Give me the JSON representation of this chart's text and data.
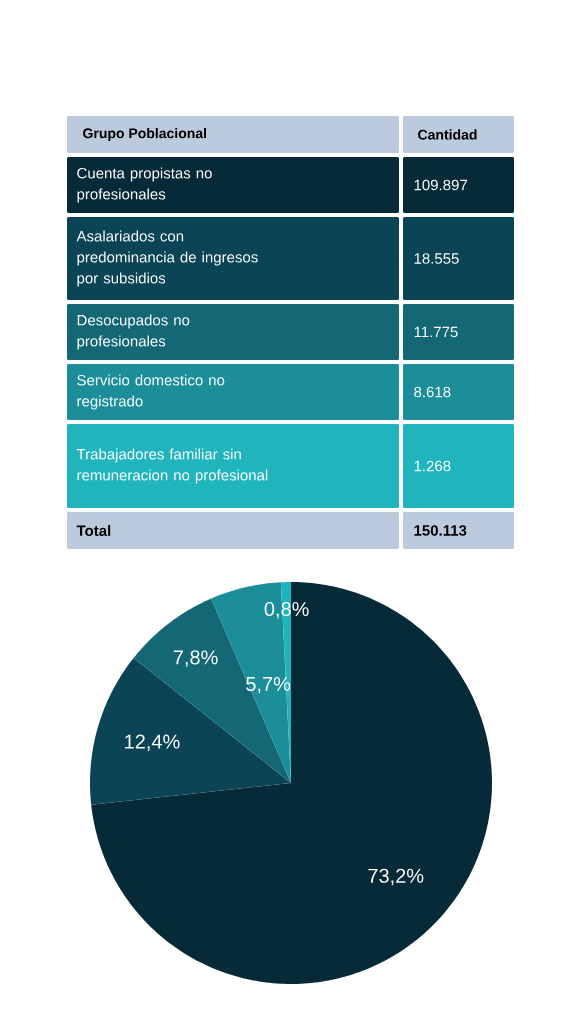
{
  "chart_data": [
    {
      "type": "other",
      "annotations": [
        "Grupo Poblacional",
        "Cantidad",
        "Cuenta propistas no profesionales",
        "109.897",
        "Asalariados con predominancia de ingresos por subsidios",
        "18.555",
        "Desocupados no profesionales",
        "11.775",
        "Servicio domestico no registrado",
        "8.618",
        "Trabajadores familiar sin remuneracion no profesional",
        "1.268",
        "Total",
        "150.113"
      ]
    },
    {
      "type": "pie",
      "categories": [
        null,
        null,
        null,
        null,
        null
      ],
      "values": [
        73.2,
        12.4,
        7.8,
        5.7,
        0.8
      ],
      "colors": [
        "#072a38",
        "#0b4454",
        "#146876",
        "#1b8e99",
        "#20b4bc"
      ],
      "value_labels": [
        "73,2%",
        "12,4%",
        "7,8%",
        "5,7%",
        "0,8%"
      ]
    }
  ]
}
